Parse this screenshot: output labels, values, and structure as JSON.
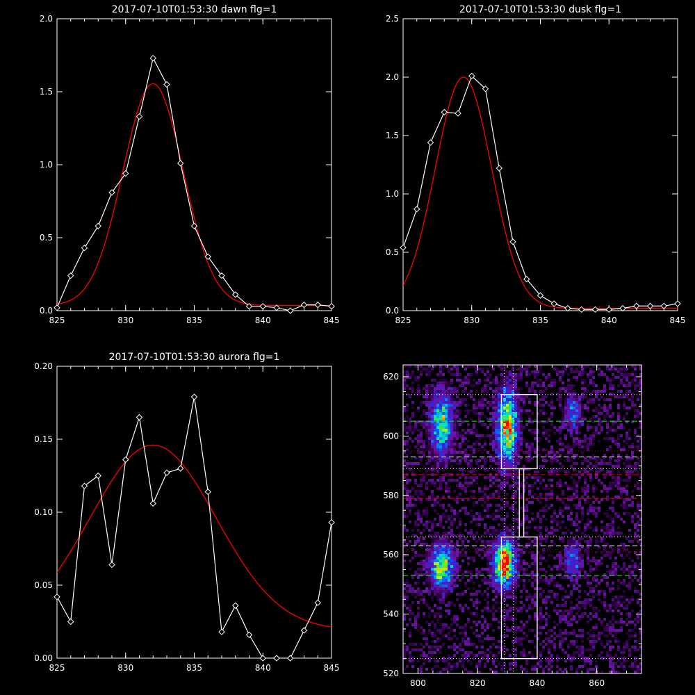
{
  "chart_data": [
    {
      "id": "dawn",
      "type": "line",
      "title": "2017-07-10T01:53:30 dawn flg=1",
      "xlim": [
        825,
        845
      ],
      "ylim": [
        0,
        2.0
      ],
      "xticks": [
        825,
        830,
        835,
        840,
        845
      ],
      "yticks": [
        "0.0",
        "0.5",
        "1.0",
        "1.5",
        "2.0"
      ],
      "ytick_values": [
        0,
        0.5,
        1.0,
        1.5,
        2.0
      ],
      "data": {
        "x": [
          825,
          826,
          827,
          828,
          829,
          830,
          831,
          832,
          833,
          834,
          835,
          836,
          837,
          838,
          839,
          840,
          841,
          842,
          843,
          844,
          845
        ],
        "y": [
          0.02,
          0.24,
          0.43,
          0.58,
          0.81,
          0.94,
          1.33,
          1.73,
          1.55,
          1.01,
          0.58,
          0.37,
          0.24,
          0.11,
          0.03,
          0.03,
          0.02,
          0.0,
          0.04,
          0.04,
          0.03
        ]
      },
      "fit": {
        "type": "gaussian",
        "amplitude": 1.52,
        "center": 832.0,
        "sigma": 2.2,
        "offset": 0.035
      },
      "colors": {
        "data": "#ffffff",
        "fit": "#ff0000"
      }
    },
    {
      "id": "dusk",
      "type": "line",
      "title": "2017-07-10T01:53:30 dusk flg=1",
      "xlim": [
        825,
        845
      ],
      "ylim": [
        0,
        2.5
      ],
      "xticks": [
        825,
        830,
        835,
        840,
        845
      ],
      "yticks": [
        "0.0",
        "0.5",
        "1.0",
        "1.5",
        "2.0",
        "2.5"
      ],
      "ytick_values": [
        0,
        0.5,
        1.0,
        1.5,
        2.0,
        2.5
      ],
      "data": {
        "x": [
          825,
          826,
          827,
          828,
          829,
          830,
          831,
          832,
          833,
          834,
          835,
          836,
          837,
          838,
          839,
          840,
          841,
          842,
          843,
          844,
          845
        ],
        "y": [
          0.54,
          0.87,
          1.44,
          1.7,
          1.69,
          2.01,
          1.9,
          1.22,
          0.59,
          0.27,
          0.13,
          0.06,
          0.02,
          0.01,
          0.01,
          0.01,
          0.02,
          0.04,
          0.04,
          0.04,
          0.06
        ]
      },
      "fit": {
        "type": "gaussian",
        "amplitude": 1.98,
        "center": 829.4,
        "sigma": 2.05,
        "offset": 0.02
      },
      "colors": {
        "data": "#ffffff",
        "fit": "#ff0000"
      }
    },
    {
      "id": "aurora",
      "type": "line",
      "title": "2017-07-10T01:53:30 aurora flg=1",
      "xlim": [
        825,
        845
      ],
      "ylim": [
        0,
        0.2
      ],
      "xticks": [
        825,
        830,
        835,
        840,
        845
      ],
      "yticks": [
        "0.00",
        "0.05",
        "0.10",
        "0.15",
        "0.20"
      ],
      "ytick_values": [
        0,
        0.05,
        0.1,
        0.15,
        0.2
      ],
      "data": {
        "x": [
          825,
          826,
          827,
          828,
          829,
          830,
          831,
          832,
          833,
          834,
          835,
          836,
          837,
          838,
          839,
          840,
          841,
          842,
          843,
          844,
          845
        ],
        "y": [
          0.042,
          0.025,
          0.118,
          0.125,
          0.064,
          0.136,
          0.165,
          0.106,
          0.127,
          0.13,
          0.179,
          0.114,
          0.018,
          0.036,
          0.016,
          0.0,
          0.0,
          0.0,
          0.019,
          0.038,
          0.093
        ]
      },
      "fit": {
        "type": "gaussian",
        "amplitude": 0.127,
        "center": 832.0,
        "sigma": 4.6,
        "offset": 0.019
      },
      "colors": {
        "data": "#ffffff",
        "fit": "#ff0000"
      }
    },
    {
      "id": "spectrogram",
      "type": "heatmap",
      "xlim": [
        795,
        875
      ],
      "ylim": [
        520,
        624
      ],
      "xticks": [
        800,
        820,
        840,
        860
      ],
      "yticks": [
        520,
        540,
        560,
        580,
        600,
        620
      ],
      "emission_blobs": [
        {
          "x": 808,
          "y": 604,
          "width": 2.5,
          "height": 7,
          "intensity": 0.62
        },
        {
          "x": 830,
          "y": 603,
          "width": 2.3,
          "height": 8,
          "intensity": 0.85
        },
        {
          "x": 808,
          "y": 556,
          "width": 2.6,
          "height": 5,
          "intensity": 0.7
        },
        {
          "x": 829,
          "y": 557,
          "width": 2.4,
          "height": 5,
          "intensity": 1.0
        },
        {
          "x": 852,
          "y": 608,
          "width": 1.8,
          "height": 4,
          "intensity": 0.35
        },
        {
          "x": 852,
          "y": 558,
          "width": 1.8,
          "height": 4,
          "intensity": 0.35
        }
      ],
      "boxes": [
        {
          "x0": 828,
          "x1": 840,
          "y0": 589,
          "y1": 614
        },
        {
          "x0": 834,
          "x1": 835.5,
          "y0": 566,
          "y1": 589
        },
        {
          "x0": 828,
          "x1": 840,
          "y0": 525,
          "y1": 566
        }
      ],
      "vertical_dotted_x": [
        829,
        832
      ],
      "h_dotted_white_y": [
        614,
        589,
        566,
        525
      ],
      "h_dashed_green_y": [
        605,
        553
      ],
      "h_dashed_white_y": [
        593,
        563
      ],
      "h_dashed_red_y": [
        587,
        579
      ],
      "h_dotted_red_y": [
        583,
        595,
        561
      ],
      "colors": {
        "box": "#ffffff",
        "green": "#00ff00",
        "red": "#ff0000",
        "white": "#ffffff"
      }
    }
  ]
}
